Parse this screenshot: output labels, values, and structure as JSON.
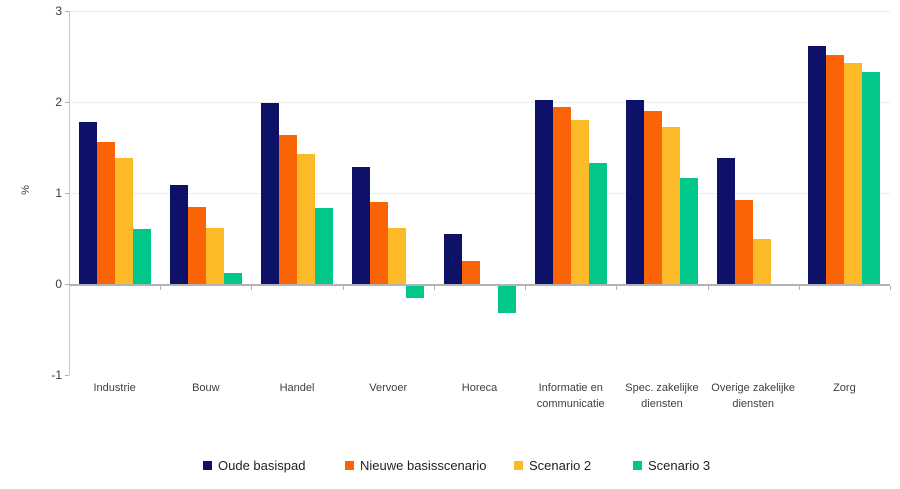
{
  "ylabel_text": "%",
  "chart_data": {
    "type": "bar",
    "title": "",
    "xlabel": "",
    "ylabel": "%",
    "ylim": [
      -1,
      3
    ],
    "yticks": [
      3,
      2,
      1,
      0,
      -1
    ],
    "grid": "horizontal gridlines at 1,2,3; gray zero baseline",
    "legend_position": "bottom",
    "categories": [
      "Industrie",
      "Bouw",
      "Handel",
      "Vervoer",
      "Horeca",
      "Informatie en communicatie",
      "Spec. zakelijke diensten",
      "Overige zakelijke diensten",
      "Zorg"
    ],
    "series": [
      {
        "name": "Oude basispad",
        "color": "#0d1168",
        "values": [
          1.78,
          1.09,
          1.99,
          1.29,
          0.55,
          2.02,
          2.02,
          1.39,
          2.62
        ]
      },
      {
        "name": "Nieuwe basisscenario",
        "color": "#fb6307",
        "values": [
          1.56,
          0.85,
          1.64,
          0.9,
          0.25,
          1.94,
          1.9,
          0.92,
          2.52
        ]
      },
      {
        "name": "Scenario 2",
        "color": "#fdba28",
        "values": [
          1.38,
          0.62,
          1.43,
          0.62,
          0.0,
          1.8,
          1.72,
          0.5,
          2.43
        ]
      },
      {
        "name": "Scenario 3",
        "color": "#01c78b",
        "values": [
          0.6,
          0.12,
          0.83,
          -0.13,
          -0.3,
          1.33,
          1.17,
          0.0,
          2.33
        ]
      }
    ]
  }
}
